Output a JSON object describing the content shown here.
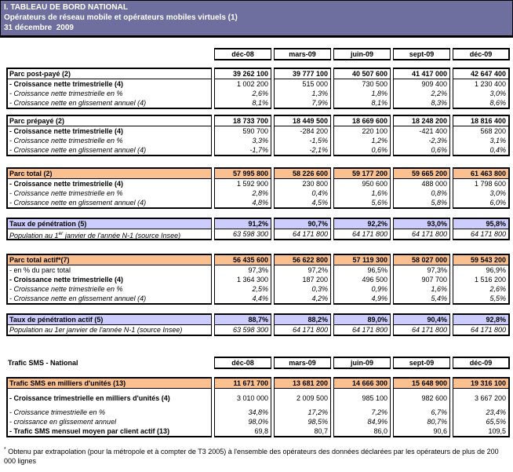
{
  "title": {
    "line1": "I. TABLEAU DE BORD NATIONAL",
    "line2": "Opérateurs de réseau mobile et opérateurs mobiles virtuels (1)",
    "line3": "31 décembre  2009"
  },
  "columns": [
    "déc-08",
    "mars-09",
    "juin-09",
    "sept-09",
    "déc-09"
  ],
  "sms_section": {
    "label": "Trafic SMS - National"
  },
  "footnote": {
    "star": "*",
    "text": " Obtenu par extrapolation (pour la métropole et à compter de T3 2005) à l'ensemble des opérateurs des données déclarées par les opérateurs de plus de 200 000 lignes"
  },
  "colors": {
    "title_bg": "#6F6F9F",
    "orange_header": "#FAC090",
    "lavender_header": "#CCCCFF"
  },
  "tables": [
    {
      "key": "parc_post_paye",
      "bg": "none",
      "rows": [
        {
          "label": "Parc post-payé (2)",
          "style": "header",
          "values": [
            "39 262 100",
            "39 777 100",
            "40 507 600",
            "41 417 000",
            "42 647 400"
          ]
        },
        {
          "label": "- Croissance nette trimestrielle (4)",
          "style": "bold",
          "values": [
            "1 002 200",
            "515 000",
            "730 500",
            "909 400",
            "1 230 400"
          ]
        },
        {
          "label": "- Croissance nette trimestrielle en %",
          "style": "italic",
          "values": [
            "2,6%",
            "1,3%",
            "1,8%",
            "2,2%",
            "3,0%"
          ]
        },
        {
          "label": "- Croissance nette en glissement annuel (4)",
          "style": "italic",
          "values": [
            "8,1%",
            "7,9%",
            "8,1%",
            "8,3%",
            "8,6%"
          ]
        }
      ]
    },
    {
      "key": "parc_prepaye",
      "bg": "none",
      "rows": [
        {
          "label": "Parc prépayé (2)",
          "style": "header",
          "values": [
            "18 733 700",
            "18 449 500",
            "18 669 600",
            "18 248 200",
            "18 816 400"
          ]
        },
        {
          "label": "- Croissance nette trimestrielle (4)",
          "style": "bold",
          "values": [
            "590 700",
            "-284 200",
            "220 100",
            "-421 400",
            "568 200"
          ]
        },
        {
          "label": "- Croissance nette trimestrielle en %",
          "style": "italic",
          "values": [
            "3,3%",
            "-1,5%",
            "1,2%",
            "-2,3%",
            "3,1%"
          ]
        },
        {
          "label": "- Croissance nette en glissement annuel (4)",
          "style": "italic",
          "values": [
            "-1,7%",
            "-2,1%",
            "0,6%",
            "0,6%",
            "0,4%"
          ]
        }
      ]
    },
    {
      "key": "parc_total",
      "bg": "orange",
      "rows": [
        {
          "label": "Parc total (2)",
          "style": "header",
          "values": [
            "57 995 800",
            "58 226 600",
            "59 177 200",
            "59 665 200",
            "61 463 800"
          ]
        },
        {
          "label": "- Croissance nette trimestrielle (4)",
          "style": "bold",
          "values": [
            "1 592 900",
            "230 800",
            "950 600",
            "488 000",
            "1 798 600"
          ]
        },
        {
          "label": "- Croissance nette trimestrielle en %",
          "style": "italic",
          "values": [
            "2,8%",
            "0,4%",
            "1,6%",
            "0,8%",
            "3,0%"
          ]
        },
        {
          "label": "- Croissance nette en glissement annuel (4)",
          "style": "italic",
          "values": [
            "4,8%",
            "4,5%",
            "5,6%",
            "5,8%",
            "6,0%"
          ]
        }
      ]
    },
    {
      "key": "taux_penetration",
      "bg": "lavender",
      "rows": [
        {
          "label": "Taux de pénétration (5)",
          "style": "header",
          "values": [
            "91,2%",
            "90,7%",
            "92,2%",
            "93,0%",
            "95,8%"
          ]
        },
        {
          "label_parts": [
            "Population au 1",
            "er",
            " janvier de l'année N-1 (source Insee)"
          ],
          "style": "italic",
          "values": [
            "63 598 300",
            "64 171 800",
            "64 171 800",
            "64 171 800",
            "64 171 800"
          ]
        }
      ]
    },
    {
      "key": "parc_total_actif",
      "bg": "orange",
      "rows": [
        {
          "label": "Parc total actif*(7)",
          "style": "header",
          "values": [
            "56 435 600",
            "56 622 800",
            "57 119 300",
            "58 027 000",
            "59 543 200"
          ]
        },
        {
          "label": "- en % du parc total",
          "style": "regular",
          "values": [
            "97,3%",
            "97,2%",
            "96,5%",
            "97,3%",
            "96,9%"
          ]
        },
        {
          "label": "- Croissance nette trimestrielle (4)",
          "style": "bold",
          "values": [
            "1 364 300",
            "187 200",
            "496 500",
            "907 700",
            "1 516 200"
          ]
        },
        {
          "label": "- Croissance nette trimestrielle en %",
          "style": "italic",
          "values": [
            "2,5%",
            "0,3%",
            "0,9%",
            "1,6%",
            "2,6%"
          ]
        },
        {
          "label": "- Croissance nette en glissement annuel (4)",
          "style": "italic",
          "values": [
            "4,4%",
            "4,2%",
            "4,9%",
            "5,4%",
            "5,5%"
          ]
        }
      ]
    },
    {
      "key": "taux_penetration_actif",
      "bg": "lavender",
      "rows": [
        {
          "label": "Taux de pénétration actif (5)",
          "style": "header",
          "values": [
            "88,7%",
            "88,2%",
            "89,0%",
            "90,4%",
            "92,8%"
          ]
        },
        {
          "label": "Population au 1er janvier de l'année N-1 (source Insee)",
          "style": "italic",
          "values": [
            "63 598 300",
            "64 171 800",
            "64 171 800",
            "64 171 800",
            "64 171 800"
          ]
        }
      ]
    },
    {
      "key": "trafic_sms",
      "bg": "orange",
      "rows": [
        {
          "label": "Trafic SMS en milliers d'unités (13)",
          "style": "header",
          "values": [
            "11 671 700",
            "13 681 200",
            "14 666 300",
            "15 648 900",
            "19 316 100"
          ]
        },
        {
          "label": "- Croissance trimestrielle en milliers d'unités (4)",
          "style": "bold",
          "tall": true,
          "values": [
            "3 010 000",
            "2 009 500",
            "985 100",
            "982 600",
            "3 667 200"
          ]
        },
        {
          "label": "- Croissance trimestrielle en %",
          "style": "italic",
          "values": [
            "34,8%",
            "17,2%",
            "7,2%",
            "6,7%",
            "23,4%"
          ]
        },
        {
          "label": "- croissance en glissement annuel",
          "style": "italic",
          "values": [
            "98,0%",
            "98,5%",
            "84,9%",
            "80,7%",
            "65,5%"
          ]
        },
        {
          "label": "- Trafic SMS mensuel moyen par client actif (13)",
          "style": "bold",
          "values": [
            "69,8",
            "80,7",
            "86,0",
            "90,6",
            "109,5"
          ]
        }
      ]
    }
  ]
}
